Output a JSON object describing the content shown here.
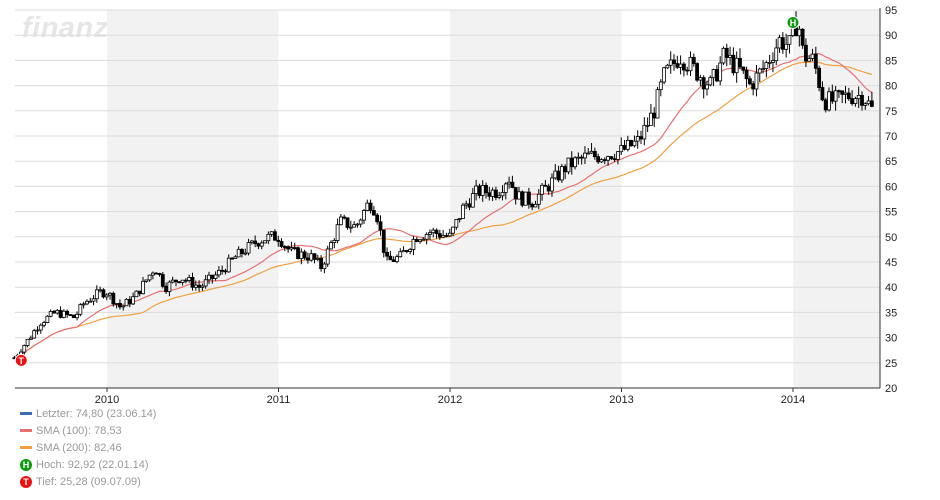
{
  "watermark": "finanztreff.de:",
  "chart_data": {
    "type": "candlestick",
    "title": "",
    "xlabel": "",
    "ylabel": "",
    "ylim": [
      20,
      95
    ],
    "yticks": [
      20,
      25,
      30,
      35,
      40,
      45,
      50,
      55,
      60,
      65,
      70,
      75,
      80,
      85,
      90,
      95
    ],
    "xticks": [
      "2010",
      "2011",
      "2012",
      "2013",
      "2014"
    ],
    "xrange": [
      2009.46,
      2014.48
    ],
    "grid": true,
    "price_close_approx": [
      [
        2009.46,
        26
      ],
      [
        2009.55,
        30
      ],
      [
        2009.61,
        33
      ],
      [
        2009.7,
        35
      ],
      [
        2009.81,
        34
      ],
      [
        2009.87,
        37
      ],
      [
        2009.96,
        39
      ],
      [
        2010.0,
        39
      ],
      [
        2010.08,
        36
      ],
      [
        2010.16,
        38
      ],
      [
        2010.28,
        44
      ],
      [
        2010.34,
        40
      ],
      [
        2010.43,
        42
      ],
      [
        2010.54,
        40
      ],
      [
        2010.66,
        43
      ],
      [
        2010.75,
        46
      ],
      [
        2010.87,
        49
      ],
      [
        2010.95,
        50
      ],
      [
        2011.0,
        50
      ],
      [
        2011.07,
        47
      ],
      [
        2011.19,
        46
      ],
      [
        2011.25,
        44
      ],
      [
        2011.36,
        53
      ],
      [
        2011.45,
        52
      ],
      [
        2011.53,
        57
      ],
      [
        2011.57,
        55
      ],
      [
        2011.63,
        45
      ],
      [
        2011.71,
        46
      ],
      [
        2011.8,
        50
      ],
      [
        2011.89,
        51
      ],
      [
        2012.0,
        50
      ],
      [
        2012.08,
        56
      ],
      [
        2012.16,
        59
      ],
      [
        2012.28,
        59
      ],
      [
        2012.34,
        62
      ],
      [
        2012.39,
        58
      ],
      [
        2012.48,
        57
      ],
      [
        2012.57,
        60
      ],
      [
        2012.68,
        64
      ],
      [
        2012.8,
        66
      ],
      [
        2012.86,
        66
      ],
      [
        2013.0,
        67
      ],
      [
        2013.1,
        69
      ],
      [
        2013.19,
        75
      ],
      [
        2013.25,
        82
      ],
      [
        2013.34,
        86
      ],
      [
        2013.43,
        83
      ],
      [
        2013.52,
        80
      ],
      [
        2013.6,
        86
      ],
      [
        2013.69,
        83
      ],
      [
        2013.75,
        80
      ],
      [
        2013.84,
        84
      ],
      [
        2013.92,
        89
      ],
      [
        2013.98,
        88
      ],
      [
        2014.0,
        91
      ],
      [
        2014.03,
        92.9
      ],
      [
        2014.06,
        86
      ],
      [
        2014.12,
        85
      ],
      [
        2014.18,
        77
      ],
      [
        2014.24,
        77
      ],
      [
        2014.32,
        78
      ],
      [
        2014.41,
        78
      ],
      [
        2014.47,
        74.8
      ]
    ],
    "series": [
      {
        "name": "Letzter",
        "color": "#3a6fb5"
      },
      {
        "name": "SMA (100)",
        "color": "#e87070"
      },
      {
        "name": "SMA (200)",
        "color": "#f0a040"
      }
    ],
    "annotations": [
      {
        "label": "H",
        "color": "#119911",
        "date": 2014.0,
        "value": 92.92
      },
      {
        "label": "T",
        "color": "#ee1111",
        "date": 2009.5,
        "value": 25.28
      }
    ],
    "shaded_years": [
      "2010",
      "2012",
      "2014"
    ]
  },
  "legend": {
    "last": "Letzter: 74,80 (23.06.14)",
    "sma100": "SMA (100): 78,53",
    "sma200": "SMA (200): 82,46",
    "high": "Hoch: 92,92 (22.01.14)",
    "low": "Tief: 25,28 (09.07.09)",
    "high_marker": "H",
    "low_marker": "T"
  }
}
